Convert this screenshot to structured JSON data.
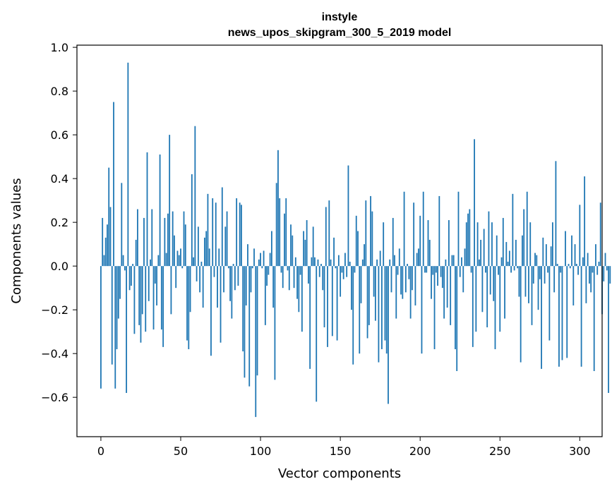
{
  "chart_data": {
    "type": "bar",
    "title": "instyle",
    "subtitle": "news_upos_skipgram_300_5_2019 model",
    "xlabel": "Vector components",
    "ylabel": "Components values",
    "xlim": [
      -15,
      314
    ],
    "ylim": [
      -0.78,
      1.01
    ],
    "xticks": [
      0,
      50,
      100,
      150,
      200,
      250,
      300
    ],
    "yticks": [
      -0.6,
      -0.4,
      -0.2,
      0.0,
      0.2,
      0.4,
      0.6,
      0.8,
      1.0
    ],
    "ytick_labels": [
      "−0.6",
      "−0.4",
      "−0.2",
      "0.0",
      "0.2",
      "0.4",
      "0.6",
      "0.8",
      "1.0"
    ],
    "bar_color": "#1f77b4",
    "grid": false,
    "legend": "none",
    "values": [
      -0.56,
      0.22,
      0.05,
      0.13,
      0.19,
      0.45,
      0.27,
      -0.45,
      0.75,
      -0.56,
      -0.38,
      -0.24,
      -0.15,
      0.38,
      0.05,
      -0.02,
      -0.58,
      0.93,
      -0.11,
      -0.09,
      0.01,
      -0.31,
      0.12,
      0.26,
      -0.27,
      -0.35,
      -0.22,
      0.22,
      -0.3,
      0.52,
      -0.16,
      0.03,
      0.26,
      -0.29,
      -0.08,
      -0.18,
      0.05,
      0.51,
      -0.29,
      -0.37,
      0.22,
      0.06,
      0.24,
      0.6,
      -0.22,
      0.25,
      0.14,
      -0.1,
      0.07,
      0.05,
      0.08,
      -0.01,
      0.25,
      0.19,
      -0.34,
      -0.38,
      -0.21,
      0.42,
      0.04,
      0.64,
      -0.07,
      0.18,
      -0.12,
      0.02,
      -0.19,
      0.13,
      0.16,
      0.33,
      0.08,
      -0.41,
      0.31,
      -0.05,
      0.29,
      -0.19,
      0.08,
      -0.35,
      0.36,
      -0.12,
      0.18,
      0.25,
      -0.01,
      -0.16,
      -0.24,
      0.01,
      -0.11,
      0.31,
      -0.09,
      0.29,
      0.28,
      -0.39,
      -0.51,
      -0.18,
      0.1,
      -0.55,
      -0.12,
      -0.01,
      0.08,
      -0.69,
      -0.5,
      0.03,
      0.06,
      -0.01,
      0.07,
      -0.27,
      -0.09,
      -0.04,
      0.06,
      0.16,
      -0.19,
      -0.52,
      0.38,
      0.53,
      0.31,
      -0.03,
      -0.1,
      0.24,
      0.31,
      -0.02,
      -0.11,
      0.19,
      0.14,
      -0.1,
      0.04,
      -0.15,
      -0.21,
      -0.04,
      -0.3,
      0.16,
      0.12,
      0.21,
      -0.08,
      -0.47,
      0.04,
      0.18,
      0.04,
      -0.62,
      0.03,
      -0.05,
      0.01,
      -0.11,
      -0.28,
      0.27,
      -0.37,
      0.3,
      0.03,
      -0.32,
      0.13,
      -0.01,
      -0.34,
      0.05,
      -0.14,
      -0.03,
      -0.06,
      0.06,
      -0.05,
      0.46,
      0.02,
      -0.2,
      -0.45,
      -0.03,
      0.23,
      0.16,
      -0.4,
      -0.17,
      0.03,
      0.1,
      0.3,
      -0.33,
      -0.27,
      0.32,
      0.25,
      -0.14,
      -0.25,
      0.03,
      -0.44,
      0.07,
      -0.38,
      0.2,
      -0.34,
      -0.4,
      -0.63,
      0.03,
      -0.12,
      0.22,
      0.05,
      -0.24,
      -0.04,
      0.08,
      -0.13,
      -0.15,
      0.34,
      -0.12,
      0.01,
      -0.06,
      -0.24,
      -0.11,
      0.29,
      -0.18,
      0.06,
      0.08,
      0.23,
      -0.4,
      0.34,
      -0.03,
      -0.03,
      0.21,
      0.12,
      -0.15,
      -0.04,
      -0.38,
      -0.03,
      -0.09,
      0.32,
      -0.05,
      -0.1,
      -0.24,
      0.03,
      -0.19,
      0.21,
      -0.27,
      0.05,
      0.05,
      -0.38,
      -0.48,
      0.34,
      -0.05,
      0.04,
      -0.12,
      0.08,
      0.2,
      0.24,
      0.26,
      -0.03,
      -0.37,
      0.58,
      -0.3,
      0.2,
      0.03,
      0.12,
      -0.21,
      0.17,
      -0.03,
      -0.28,
      0.25,
      -0.13,
      0.2,
      -0.16,
      -0.38,
      0.14,
      -0.04,
      -0.3,
      0.04,
      0.22,
      -0.24,
      0.11,
      0.02,
      0.07,
      -0.03,
      0.33,
      -0.02,
      0.12,
      -0.01,
      -0.14,
      -0.44,
      0.14,
      0.26,
      -0.14,
      0.34,
      -0.17,
      0.2,
      -0.27,
      -0.08,
      0.06,
      0.05,
      -0.2,
      -0.06,
      -0.47,
      0.13,
      -0.08,
      0.1,
      -0.03,
      -0.34,
      0.09,
      0.2,
      -0.12,
      0.48,
      0.01,
      -0.46,
      -0.03,
      -0.43,
      0.0,
      0.16,
      -0.42,
      0.01,
      -0.01,
      0.14,
      -0.18,
      0.1,
      0.01,
      -0.04,
      0.28,
      -0.46,
      0.04,
      0.41,
      -0.17,
      0.06,
      -0.08,
      -0.12,
      -0.03,
      -0.48,
      0.1,
      -0.04,
      0.02,
      0.29,
      -0.22,
      -0.07,
      0.06,
      -0.02,
      -0.58,
      -0.08
    ]
  }
}
